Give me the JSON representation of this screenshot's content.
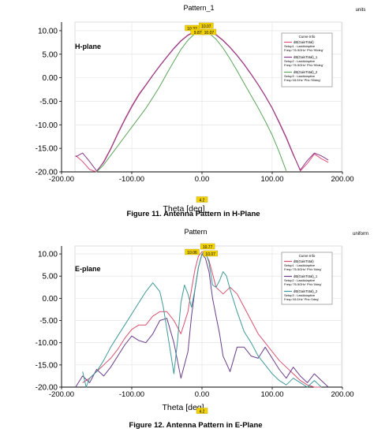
{
  "chart_data": [
    {
      "type": "line",
      "title": "Pattern_1",
      "units_label": "units",
      "plane_label": "H-plane",
      "xlabel": "Theta [deg]",
      "xlim": [
        -200,
        200
      ],
      "ylim": [
        -20,
        12.5
      ],
      "x_ticks": [
        -200,
        -100,
        0,
        100,
        200
      ],
      "x_tick_labels": [
        "-200.00",
        "-100.00",
        "0.00",
        "100.00",
        "200.00"
      ],
      "y_ticks": [
        10,
        5,
        0,
        -5,
        -10,
        -15,
        -20
      ],
      "y_tick_labels": [
        "10.00",
        "5.00",
        "0.00",
        "-5.00",
        "-10.00",
        "-15.00",
        "-20.00"
      ],
      "grid": true,
      "legend_position": "top-right",
      "legend_title": "Curve Info",
      "cursor_label": "4.2",
      "marker_labels": [
        "10.37",
        "10.07",
        "9.87",
        "10.07"
      ],
      "caption": "Figure 11. Antenna Pattern in H-Plane",
      "series": [
        {
          "name": "dB(GainTotal)",
          "legend_lines": [
            "Setup1 : LastAdaptive",
            "Freq='76.5GHz' Phi='90deg'"
          ],
          "color": "#e0507a",
          "x": [
            -180,
            -170,
            -160,
            -150,
            -140,
            -130,
            -120,
            -110,
            -100,
            -90,
            -80,
            -70,
            -60,
            -50,
            -40,
            -30,
            -20,
            -10,
            0,
            10,
            20,
            30,
            40,
            50,
            60,
            70,
            80,
            90,
            100,
            110,
            120,
            130,
            140,
            150,
            160,
            170,
            180
          ],
          "y": [
            -16.5,
            -17.8,
            -19.5,
            -20,
            -17.8,
            -15,
            -11.8,
            -8.8,
            -6,
            -3.5,
            -1.5,
            0.6,
            2.6,
            4.5,
            6.3,
            7.9,
            9.1,
            9.9,
            10.1,
            9.9,
            9.2,
            8,
            6.5,
            4.8,
            2.9,
            0.8,
            -1.4,
            -3.8,
            -6.4,
            -9.4,
            -12.6,
            -16.2,
            -19.8,
            -18.2,
            -16.2,
            -17.2,
            -18
          ]
        },
        {
          "name": "dB(GainTotal)_1",
          "legend_lines": [
            "Setup2 : LastAdaptive",
            "Freq='76.5GHz' Phi='90deg'"
          ],
          "color": "#8b3a8b",
          "x": [
            -180,
            -170,
            -160,
            -150,
            -140,
            -130,
            -120,
            -110,
            -100,
            -90,
            -80,
            -70,
            -60,
            -50,
            -40,
            -30,
            -20,
            -10,
            0,
            10,
            20,
            30,
            40,
            50,
            60,
            70,
            80,
            90,
            100,
            110,
            120,
            130,
            140,
            150,
            160,
            170,
            180
          ],
          "y": [
            -16.8,
            -16,
            -17.8,
            -19.8,
            -18,
            -15.2,
            -12,
            -9,
            -6.2,
            -3.7,
            -1.6,
            0.5,
            2.5,
            4.4,
            6.2,
            7.8,
            9,
            9.8,
            10,
            9.8,
            9.1,
            7.9,
            6.4,
            4.7,
            2.8,
            0.7,
            -1.5,
            -3.9,
            -6.5,
            -9.6,
            -12.8,
            -16.4,
            -19.6,
            -17.6,
            -16,
            -16.6,
            -17.5
          ]
        },
        {
          "name": "dB(GainTotal)_2",
          "legend_lines": [
            "Setup3 : LastAdaptive",
            "Freq='81GHz' Phi='90deg'"
          ],
          "color": "#5ba65b",
          "x": [
            -150,
            -140,
            -130,
            -120,
            -110,
            -100,
            -90,
            -80,
            -70,
            -60,
            -50,
            -40,
            -30,
            -20,
            -10,
            0,
            10,
            20,
            30,
            40,
            50,
            60,
            70,
            80,
            90,
            100,
            110,
            120
          ],
          "y": [
            -20,
            -18.5,
            -16.5,
            -14.5,
            -12.5,
            -10.5,
            -8.5,
            -6.5,
            -4.2,
            -1.8,
            0.9,
            3.5,
            6,
            8,
            9.4,
            10,
            9.5,
            8.2,
            6.3,
            4,
            1.5,
            -1.2,
            -3.8,
            -6.4,
            -9.2,
            -12.2,
            -15.8,
            -19.8
          ]
        }
      ]
    },
    {
      "type": "line",
      "title": "Pattern",
      "units_label": "uniform",
      "plane_label": "E-plane",
      "xlabel": "Theta [deg]",
      "xlim": [
        -200,
        200
      ],
      "ylim": [
        -20,
        12.5
      ],
      "x_ticks": [
        -200,
        -100,
        0,
        100,
        200
      ],
      "x_tick_labels": [
        "-200.00",
        "-100.00",
        "0.00",
        "100.00",
        "200.00"
      ],
      "y_ticks": [
        10,
        5,
        0,
        -5,
        -10,
        -15,
        -20
      ],
      "y_tick_labels": [
        "10.00",
        "5.00",
        "0.00",
        "-5.00",
        "-10.00",
        "-15.00",
        "-20.00"
      ],
      "grid": true,
      "legend_position": "top-right",
      "legend_title": "Curve Info",
      "cursor_label": "4.2",
      "marker_labels": [
        "10.06",
        "10.77",
        "10.07"
      ],
      "caption": "Figure 12. Antenna Pattern in E-Plane",
      "series": [
        {
          "name": "dB(GainTotal)",
          "legend_lines": [
            "Setup1 : LastAdaptive",
            "Freq='76.5GHz' Phi='0deg'"
          ],
          "color": "#d9506e",
          "x": [
            -170,
            -160,
            -150,
            -140,
            -130,
            -120,
            -110,
            -100,
            -90,
            -80,
            -70,
            -60,
            -50,
            -40,
            -30,
            -20,
            -15,
            -10,
            -5,
            0,
            5,
            10,
            15,
            20,
            30,
            40,
            50,
            60,
            70,
            80,
            90,
            100,
            110,
            120,
            130,
            140,
            150,
            160,
            170
          ],
          "y": [
            -19,
            -18,
            -16.5,
            -15,
            -13.5,
            -11.5,
            -9,
            -7,
            -6,
            -6,
            -4,
            -3,
            -3,
            -5,
            -8,
            -3,
            2,
            6.5,
            9.5,
            10.5,
            10,
            8.5,
            5.5,
            2.5,
            1,
            2.5,
            1,
            -2,
            -5,
            -8,
            -10,
            -12,
            -14,
            -15.5,
            -17,
            -18.5,
            -19.5,
            -20,
            -20
          ]
        },
        {
          "name": "dB(GainTotal)_1",
          "legend_lines": [
            "Setup2 : LastAdaptive",
            "Freq='76.5GHz' Phi='0deg'"
          ],
          "color": "#6a3d8a",
          "x": [
            -180,
            -170,
            -160,
            -150,
            -140,
            -130,
            -120,
            -110,
            -100,
            -90,
            -80,
            -70,
            -60,
            -50,
            -40,
            -30,
            -20,
            -15,
            -10,
            -5,
            0,
            5,
            10,
            15,
            20,
            25,
            30,
            40,
            50,
            60,
            70,
            80,
            90,
            100,
            110,
            120,
            130,
            140,
            150,
            160,
            170,
            180
          ],
          "y": [
            -20,
            -17.5,
            -19,
            -16,
            -17.5,
            -15.5,
            -13,
            -10.5,
            -8.5,
            -9.5,
            -10,
            -8,
            -5,
            -4.5,
            -10,
            -18,
            -12,
            -4,
            2,
            7,
            10,
            9,
            6,
            0,
            -4,
            -8,
            -13,
            -16.5,
            -11,
            -11,
            -13,
            -13.5,
            -11,
            -13.5,
            -16,
            -18,
            -15.5,
            -17.5,
            -19,
            -17,
            -18.5,
            -20
          ]
        },
        {
          "name": "dB(GainTotal)_2",
          "legend_lines": [
            "Setup3 : LastAdaptive",
            "Freq='81GHz' Phi='0deg'"
          ],
          "color": "#3f9a9a",
          "x": [
            -170,
            -165,
            -160,
            -150,
            -140,
            -130,
            -120,
            -110,
            -100,
            -90,
            -80,
            -70,
            -60,
            -55,
            -50,
            -45,
            -40,
            -35,
            -30,
            -25,
            -20,
            -15,
            -10,
            -5,
            0,
            5,
            10,
            15,
            20,
            25,
            30,
            35,
            40,
            50,
            60,
            70,
            80,
            90,
            100,
            110,
            120,
            130,
            140,
            150,
            160,
            170
          ],
          "y": [
            -16.5,
            -20,
            -18,
            -16.5,
            -14,
            -11,
            -8.5,
            -6,
            -3.5,
            -1,
            1.5,
            3.5,
            1.5,
            -2,
            -7,
            -12,
            -17,
            -10,
            -1,
            3,
            1,
            -2,
            2,
            7,
            10,
            10.5,
            8,
            3,
            2.5,
            4,
            6,
            5,
            2,
            -3,
            -7.5,
            -10,
            -13,
            -15,
            -17,
            -18.5,
            -19.5,
            -18,
            -19,
            -20,
            -18.5,
            -20
          ]
        }
      ]
    }
  ]
}
